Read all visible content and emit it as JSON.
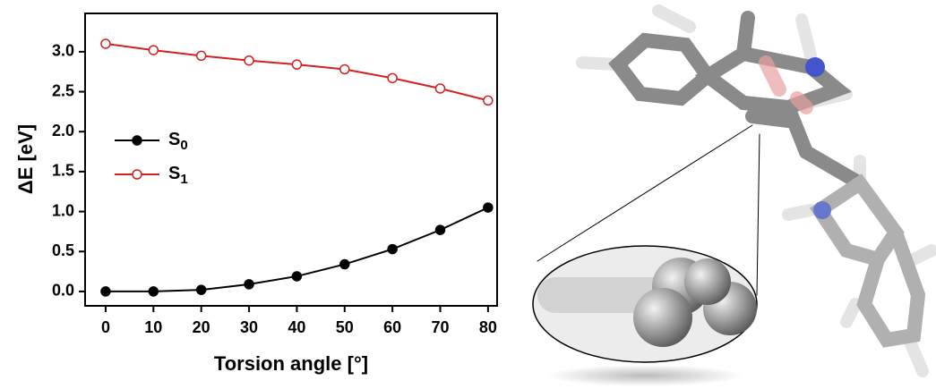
{
  "chart_data": {
    "type": "line",
    "x_label": "Torsion angle [°]",
    "y_label": "ΔE [eV]",
    "x": [
      0,
      10,
      20,
      30,
      40,
      50,
      60,
      70,
      80
    ],
    "series": [
      {
        "name": "S0",
        "color": "#000000",
        "marker": "filled",
        "values": [
          0.0,
          0.0,
          0.02,
          0.09,
          0.19,
          0.34,
          0.53,
          0.77,
          1.05
        ]
      },
      {
        "name": "S1",
        "color": "#d42020",
        "marker": "open",
        "values": [
          3.1,
          3.02,
          2.95,
          2.89,
          2.84,
          2.78,
          2.67,
          2.54,
          2.39
        ]
      }
    ],
    "xlim": [
      -4.3,
      81.9
    ],
    "ylim": [
      -0.18,
      3.48
    ],
    "xticks": [
      0,
      10,
      20,
      30,
      40,
      50,
      60,
      70,
      80
    ],
    "yticks": [
      {
        "value": 0,
        "label": "0.0"
      },
      0.5,
      {
        "value": 1,
        "label": "1.0"
      },
      1.5,
      {
        "value": 2,
        "label": "2.0"
      },
      2.5,
      {
        "value": 3,
        "label": "3.0"
      }
    ],
    "grid": false,
    "legend": "left"
  }
}
